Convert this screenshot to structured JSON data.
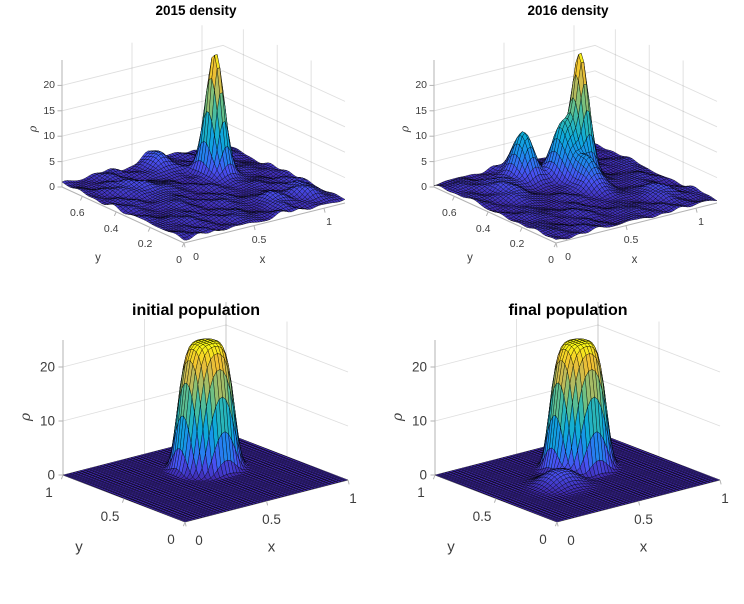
{
  "figure": {
    "background": "#ffffff"
  },
  "colors": {
    "title_text": "#000000",
    "tick_text": "#3d3d3d",
    "axis_line": "#b3b3b3",
    "grid_line": "rgba(0,0,0,0.13)",
    "mesh_line": "rgba(0,0,0,0.7)",
    "colormap_parula": [
      [
        0.0,
        "#3e26a8"
      ],
      [
        0.112,
        "#4852f4"
      ],
      [
        0.238,
        "#1c8cee"
      ],
      [
        0.365,
        "#0daada"
      ],
      [
        0.492,
        "#31b9b1"
      ],
      [
        0.619,
        "#75c180"
      ],
      [
        0.746,
        "#beba58"
      ],
      [
        0.873,
        "#f2c031"
      ],
      [
        1.0,
        "#f9fb14"
      ]
    ]
  },
  "chart_data": [
    {
      "type": "surface3d",
      "title": "2015 density",
      "xlabel": "x",
      "ylabel": "y",
      "zlabel": "ρ",
      "xlim": [
        0,
        1.15
      ],
      "ylim": [
        0,
        0.72
      ],
      "zlim": [
        0,
        25
      ],
      "xticks": [
        0,
        0.5,
        1
      ],
      "yticks": [
        0,
        0.2,
        0.4,
        0.6
      ],
      "zticks": [
        0,
        5,
        10,
        15,
        20
      ],
      "grid_resolution": [
        60,
        46
      ],
      "surface": {
        "peaks": [
          [
            0.815,
            0.49,
            24.0,
            0.042,
            1
          ],
          [
            0.62,
            0.67,
            3.0,
            0.055,
            1
          ],
          [
            0.3,
            0.5,
            1.6,
            0.07,
            1
          ],
          [
            1.02,
            0.14,
            1.8,
            0.06,
            1
          ],
          [
            0.8,
            0.12,
            1.4,
            0.05,
            1
          ]
        ],
        "noise": {
          "amplitude": 1.7,
          "seed": 3
        }
      }
    },
    {
      "type": "surface3d",
      "title": "2016 density",
      "xlabel": "x",
      "ylabel": "y",
      "zlabel": "ρ",
      "xlim": [
        0,
        1.15
      ],
      "ylim": [
        0,
        0.72
      ],
      "zlim": [
        0,
        25
      ],
      "xticks": [
        0,
        0.5,
        1
      ],
      "yticks": [
        0,
        0.2,
        0.4,
        0.6
      ],
      "zticks": [
        0,
        5,
        10,
        15,
        20
      ],
      "grid_resolution": [
        60,
        46
      ],
      "surface": {
        "peaks": [
          [
            0.78,
            0.5,
            23.5,
            0.04,
            1
          ],
          [
            0.48,
            0.59,
            9.3,
            0.05,
            1
          ],
          [
            0.67,
            0.515,
            10.3,
            0.048,
            1
          ],
          [
            0.69,
            0.38,
            5.6,
            0.055,
            1
          ],
          [
            0.25,
            0.52,
            1.8,
            0.07,
            1
          ],
          [
            0.95,
            0.16,
            1.5,
            0.06,
            1
          ]
        ],
        "noise": {
          "amplitude": 1.4,
          "seed": 7
        }
      }
    },
    {
      "type": "surface3d",
      "title": "initial population",
      "xlabel": "x",
      "ylabel": "y",
      "zlabel": "ρ",
      "xlim": [
        0,
        1
      ],
      "ylim": [
        0,
        1
      ],
      "zlim": [
        0,
        25
      ],
      "xticks": [
        0,
        0.5,
        1
      ],
      "yticks": [
        0,
        0.5,
        1
      ],
      "zticks": [
        0,
        10,
        20
      ],
      "grid_resolution": [
        48,
        48
      ],
      "surface": {
        "peaks": [
          [
            0.6,
            0.63,
            23.3,
            0.105,
            2.6
          ]
        ],
        "noise": {
          "amplitude": 0,
          "seed": 1
        }
      }
    },
    {
      "type": "surface3d",
      "title": "final population",
      "xlabel": "x",
      "ylabel": "y",
      "zlabel": "ρ",
      "xlim": [
        0,
        1
      ],
      "ylim": [
        0,
        1
      ],
      "zlim": [
        0,
        25
      ],
      "xticks": [
        0,
        0.5,
        1
      ],
      "yticks": [
        0,
        0.5,
        1
      ],
      "zticks": [
        0,
        10,
        20
      ],
      "grid_resolution": [
        48,
        48
      ],
      "surface": {
        "peaks": [
          [
            0.6,
            0.63,
            23.3,
            0.105,
            2.6
          ],
          [
            0.37,
            0.47,
            2.7,
            0.08,
            1.3
          ]
        ],
        "noise": {
          "amplitude": 0,
          "seed": 1
        }
      }
    }
  ]
}
